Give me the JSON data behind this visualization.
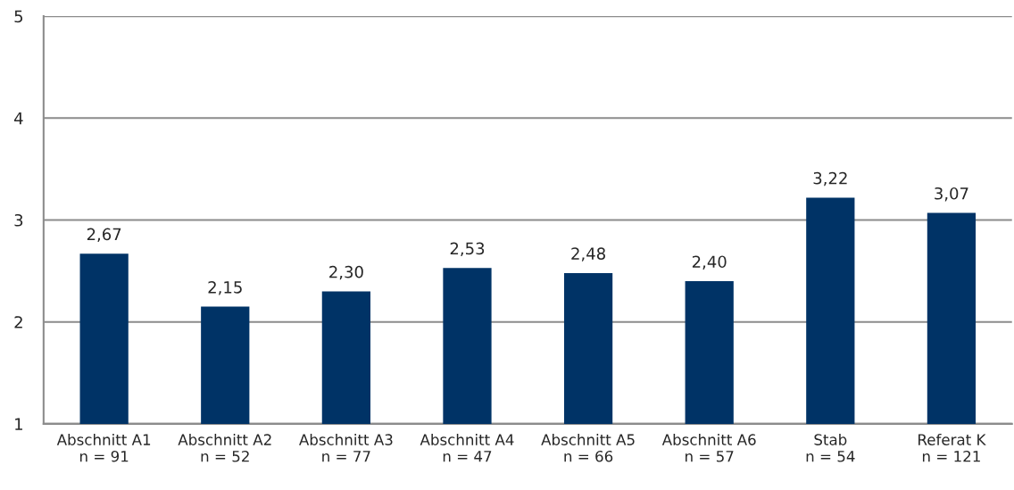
{
  "chart_data": {
    "type": "bar",
    "categories": [
      "Abschnitt A1\nn = 91",
      "Abschnitt A2\nn = 52",
      "Abschnitt A3\nn = 77",
      "Abschnitt A4\nn = 47",
      "Abschnitt A5\nn = 66",
      "Abschnitt A6\nn = 57",
      "Stab\nn = 54",
      "Referat K\nn = 121"
    ],
    "values": [
      2.67,
      2.15,
      2.3,
      2.53,
      2.48,
      2.4,
      3.22,
      3.07
    ],
    "value_labels": [
      "2,67",
      "2,15",
      "2,30",
      "2,53",
      "2,48",
      "2,40",
      "3,22",
      "3,07"
    ],
    "color": "#003366",
    "ylim": [
      1,
      5
    ],
    "yticks": [
      1,
      2,
      3,
      4,
      5
    ],
    "grid": "y",
    "legend": false
  }
}
